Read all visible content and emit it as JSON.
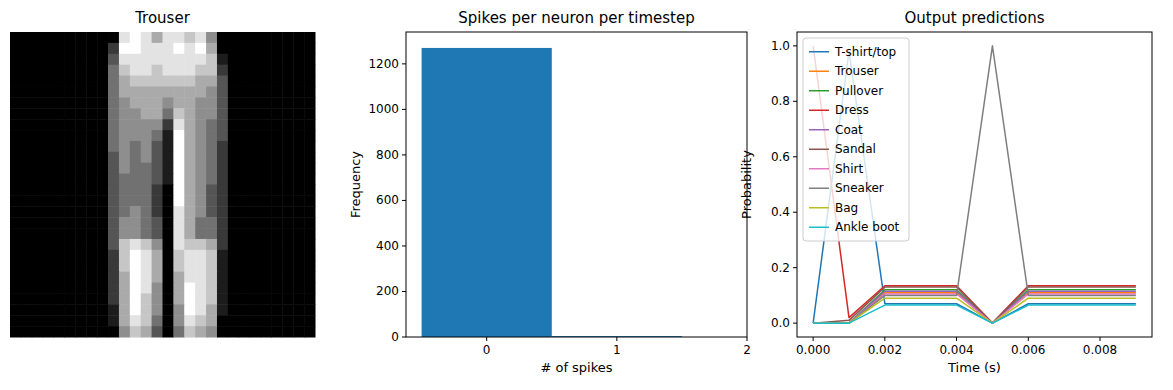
{
  "chart_data": [
    {
      "type": "image",
      "title": "Trouser",
      "tick_labels": false,
      "cells": [
        [
          0,
          0,
          0,
          0,
          0,
          0,
          0,
          0,
          0,
          0,
          0.8,
          0.9,
          0.8,
          0.6,
          0.8,
          0.8,
          0.7,
          0.8,
          0.5,
          0,
          0,
          0,
          0,
          0,
          0,
          0,
          0,
          0
        ],
        [
          0,
          0,
          0,
          0,
          0,
          0,
          0,
          0,
          0,
          0.2,
          0.9,
          0.9,
          0.8,
          0.8,
          0.8,
          0.9,
          0.8,
          0.9,
          0.6,
          0,
          0,
          0,
          0,
          0,
          0,
          0,
          0,
          0
        ],
        [
          0,
          0,
          0,
          0,
          0,
          0,
          0,
          0,
          0,
          0.3,
          0.8,
          0.8,
          0.8,
          0.8,
          0.8,
          0.8,
          0.8,
          0.8,
          0.7,
          0.1,
          0,
          0,
          0,
          0,
          0,
          0,
          0,
          0
        ],
        [
          0,
          0,
          0,
          0,
          0,
          0,
          0,
          0,
          0,
          0.4,
          0.7,
          0.8,
          0.8,
          0.7,
          0.8,
          0.8,
          0.8,
          0.7,
          0.7,
          0.2,
          0,
          0,
          0,
          0,
          0,
          0,
          0,
          0
        ],
        [
          0,
          0,
          0,
          0,
          0,
          0,
          0,
          0,
          0,
          0.4,
          0.6,
          0.7,
          0.7,
          0.7,
          0.7,
          0.7,
          0.7,
          0.6,
          0.6,
          0.3,
          0,
          0,
          0,
          0,
          0,
          0,
          0,
          0
        ],
        [
          0,
          0,
          0,
          0,
          0,
          0,
          0,
          0,
          0,
          0.4,
          0.6,
          0.6,
          0.6,
          0.6,
          0.6,
          0.6,
          0.6,
          0.6,
          0.5,
          0.3,
          0,
          0,
          0,
          0,
          0,
          0,
          0,
          0
        ],
        [
          0,
          0,
          0,
          0,
          0,
          0,
          0,
          0,
          0,
          0.4,
          0.5,
          0.6,
          0.6,
          0.6,
          0.5,
          0.6,
          0.6,
          0.5,
          0.5,
          0.3,
          0,
          0,
          0,
          0,
          0,
          0,
          0,
          0
        ],
        [
          0,
          0,
          0,
          0,
          0,
          0,
          0,
          0,
          0,
          0.4,
          0.5,
          0.5,
          0.6,
          0.6,
          0.4,
          0.7,
          0.6,
          0.5,
          0.5,
          0.3,
          0,
          0,
          0,
          0,
          0,
          0,
          0,
          0
        ],
        [
          0,
          0,
          0,
          0,
          0,
          0,
          0,
          0,
          0,
          0.4,
          0.5,
          0.5,
          0.5,
          0.5,
          0.2,
          0.8,
          0.6,
          0.5,
          0.4,
          0.3,
          0,
          0,
          0,
          0,
          0,
          0,
          0,
          0
        ],
        [
          0,
          0,
          0,
          0,
          0,
          0,
          0,
          0,
          0,
          0.4,
          0.5,
          0.5,
          0.5,
          0.4,
          0.1,
          0.9,
          0.6,
          0.5,
          0.4,
          0.3,
          0,
          0,
          0,
          0,
          0,
          0,
          0,
          0
        ],
        [
          0,
          0,
          0,
          0,
          0,
          0,
          0,
          0,
          0,
          0.4,
          0.5,
          0.4,
          0.5,
          0.3,
          0.1,
          0.9,
          0.6,
          0.5,
          0.4,
          0.2,
          0,
          0,
          0,
          0,
          0,
          0,
          0,
          0
        ],
        [
          0,
          0,
          0,
          0,
          0,
          0,
          0,
          0,
          0,
          0.3,
          0.5,
          0.4,
          0.5,
          0.3,
          0.1,
          0.9,
          0.6,
          0.5,
          0.4,
          0.2,
          0,
          0,
          0,
          0,
          0,
          0,
          0,
          0
        ],
        [
          0,
          0,
          0,
          0,
          0,
          0,
          0,
          0,
          0,
          0.3,
          0.5,
          0.4,
          0.4,
          0.3,
          0.1,
          0.9,
          0.6,
          0.5,
          0.4,
          0.2,
          0,
          0,
          0,
          0,
          0,
          0,
          0,
          0
        ],
        [
          0,
          0,
          0,
          0,
          0,
          0,
          0,
          0,
          0,
          0.3,
          0.4,
          0.4,
          0.4,
          0.3,
          0.1,
          0.9,
          0.6,
          0.5,
          0.4,
          0.2,
          0,
          0,
          0,
          0,
          0,
          0,
          0,
          0
        ],
        [
          0,
          0,
          0,
          0,
          0,
          0,
          0,
          0,
          0,
          0.3,
          0.4,
          0.4,
          0.4,
          0.2,
          0,
          0.9,
          0.6,
          0.5,
          0.3,
          0.2,
          0,
          0,
          0,
          0,
          0,
          0,
          0,
          0
        ],
        [
          0,
          0,
          0,
          0,
          0,
          0,
          0,
          0,
          0,
          0.3,
          0.4,
          0.4,
          0.4,
          0.2,
          0,
          0.9,
          0.6,
          0.5,
          0.3,
          0.2,
          0,
          0,
          0,
          0,
          0,
          0,
          0,
          0
        ],
        [
          0,
          0,
          0,
          0,
          0,
          0,
          0,
          0,
          0,
          0.3,
          0.4,
          0.5,
          0.4,
          0.2,
          0,
          0.8,
          0.6,
          0.5,
          0.3,
          0.2,
          0,
          0,
          0,
          0,
          0,
          0,
          0,
          0
        ],
        [
          0,
          0,
          0,
          0,
          0,
          0,
          0,
          0,
          0,
          0.3,
          0.5,
          0.5,
          0.4,
          0.3,
          0,
          0.8,
          0.6,
          0.4,
          0.4,
          0.2,
          0,
          0,
          0,
          0,
          0,
          0,
          0,
          0
        ],
        [
          0,
          0,
          0,
          0,
          0,
          0,
          0,
          0,
          0,
          0.3,
          0.5,
          0.5,
          0.4,
          0.3,
          0,
          0.8,
          0.6,
          0.4,
          0.4,
          0.2,
          0,
          0,
          0,
          0,
          0,
          0,
          0,
          0
        ],
        [
          0,
          0,
          0,
          0,
          0,
          0,
          0,
          0,
          0,
          0.3,
          0.7,
          0.8,
          0.7,
          0.5,
          0,
          0.8,
          0.7,
          0.7,
          0.6,
          0.2,
          0,
          0,
          0,
          0,
          0,
          0,
          0,
          0
        ],
        [
          0,
          0,
          0,
          0,
          0,
          0,
          0,
          0,
          0,
          0.2,
          0.7,
          0.9,
          0.8,
          0.6,
          0,
          0.7,
          0.8,
          0.8,
          0.7,
          0.1,
          0,
          0,
          0,
          0,
          0,
          0,
          0,
          0
        ],
        [
          0,
          0,
          0,
          0,
          0,
          0,
          0,
          0,
          0,
          0.2,
          0.7,
          0.9,
          0.8,
          0.6,
          0,
          0.7,
          0.8,
          0.8,
          0.7,
          0.1,
          0,
          0,
          0,
          0,
          0,
          0,
          0,
          0
        ],
        [
          0,
          0,
          0,
          0,
          0,
          0,
          0,
          0,
          0,
          0.2,
          0.6,
          0.9,
          0.8,
          0.6,
          0,
          0.6,
          0.8,
          0.8,
          0.7,
          0.1,
          0,
          0,
          0,
          0,
          0,
          0,
          0,
          0
        ],
        [
          0,
          0,
          0,
          0,
          0,
          0,
          0,
          0,
          0,
          0.2,
          0.6,
          0.9,
          0.8,
          0.5,
          0,
          0.6,
          0.9,
          0.8,
          0.7,
          0.1,
          0,
          0,
          0,
          0,
          0,
          0,
          0,
          0
        ],
        [
          0,
          0,
          0,
          0,
          0,
          0,
          0,
          0,
          0,
          0.2,
          0.6,
          0.9,
          0.7,
          0.5,
          0,
          0.6,
          0.9,
          0.8,
          0.7,
          0.1,
          0,
          0,
          0,
          0,
          0,
          0,
          0,
          0
        ],
        [
          0,
          0,
          0,
          0,
          0,
          0,
          0,
          0,
          0,
          0.1,
          0.6,
          0.9,
          0.7,
          0.5,
          0,
          0.5,
          0.9,
          0.8,
          0.6,
          0.1,
          0,
          0,
          0,
          0,
          0,
          0,
          0,
          0
        ],
        [
          0,
          0,
          0,
          0,
          0,
          0,
          0,
          0,
          0,
          0.1,
          0.6,
          0.8,
          0.7,
          0.4,
          0,
          0.5,
          0.8,
          0.7,
          0.6,
          0,
          0,
          0,
          0,
          0,
          0,
          0,
          0,
          0
        ],
        [
          0,
          0,
          0,
          0,
          0,
          0,
          0,
          0,
          0,
          0,
          0.5,
          0.7,
          0.6,
          0.3,
          0,
          0.4,
          0.7,
          0.6,
          0.5,
          0,
          0,
          0,
          0,
          0,
          0,
          0,
          0,
          0
        ]
      ]
    },
    {
      "type": "histogram",
      "title": "Spikes per neuron per timestep",
      "x_label": "# of spikes",
      "y_label": "Frequency",
      "bins": [
        -0.5,
        0.5,
        1.5
      ],
      "counts": [
        1270,
        4
      ],
      "color": "#1f77b4",
      "xlim": [
        -0.62,
        2.0
      ],
      "xticks": [
        0,
        1,
        2
      ],
      "ylim": [
        0,
        1340
      ],
      "yticks": [
        0,
        200,
        400,
        600,
        800,
        1000,
        1200
      ]
    },
    {
      "type": "line",
      "title": "Output predictions",
      "x_label": "Time (s)",
      "y_label": "Probability",
      "legend": "upper left",
      "x": [
        0,
        0.001,
        0.002,
        0.003,
        0.004,
        0.005,
        0.006,
        0.007,
        0.008,
        0.009
      ],
      "xlim": [
        -0.00045,
        0.00945
      ],
      "xticks": [
        {
          "value": 0,
          "label": "0.000"
        },
        {
          "value": 0.002,
          "label": "0.002"
        },
        {
          "value": 0.004,
          "label": "0.004"
        },
        {
          "value": 0.006,
          "label": "0.006"
        },
        {
          "value": 0.008,
          "label": "0.008"
        }
      ],
      "ylim": [
        -0.05,
        1.05
      ],
      "yticks": [
        {
          "value": 0,
          "label": "0.0"
        },
        {
          "value": 0.2,
          "label": "0.2"
        },
        {
          "value": 0.4,
          "label": "0.4"
        },
        {
          "value": 0.6,
          "label": "0.6"
        },
        {
          "value": 0.8,
          "label": "0.8"
        },
        {
          "value": 1,
          "label": "1.0"
        }
      ],
      "series": [
        {
          "name": "T-shirt/top",
          "color": "#1f77b4",
          "values": [
            0,
            0.98,
            0.07,
            0.07,
            0.07,
            0,
            0.07,
            0.07,
            0.07,
            0.07
          ]
        },
        {
          "name": "Trouser",
          "color": "#ff7f0e",
          "values": [
            0,
            0,
            0.11,
            0.11,
            0.11,
            0,
            0.11,
            0.11,
            0.11,
            0.11
          ]
        },
        {
          "name": "Pullover",
          "color": "#2ca02c",
          "values": [
            0,
            0,
            0.12,
            0.12,
            0.12,
            0,
            0.12,
            0.12,
            0.12,
            0.12
          ]
        },
        {
          "name": "Dress",
          "color": "#d62728",
          "values": [
            1.0,
            0.02,
            0.135,
            0.135,
            0.135,
            0,
            0.135,
            0.135,
            0.135,
            0.135
          ]
        },
        {
          "name": "Coat",
          "color": "#9467bd",
          "values": [
            0,
            0,
            0.115,
            0.115,
            0.115,
            0,
            0.115,
            0.115,
            0.115,
            0.115
          ]
        },
        {
          "name": "Sandal",
          "color": "#8c564b",
          "values": [
            0,
            0.01,
            0.13,
            0.13,
            0.13,
            0,
            0.13,
            0.13,
            0.13,
            0.13
          ]
        },
        {
          "name": "Shirt",
          "color": "#e377c2",
          "values": [
            0,
            0,
            0.105,
            0.105,
            0.105,
            0,
            0.105,
            0.105,
            0.105,
            0.105
          ]
        },
        {
          "name": "Sneaker",
          "color": "#7f7f7f",
          "values": [
            0,
            0,
            0.1,
            0.1,
            0.1,
            1.0,
            0.1,
            0.1,
            0.1,
            0.1
          ]
        },
        {
          "name": "Bag",
          "color": "#bcbd22",
          "values": [
            0,
            0,
            0.09,
            0.09,
            0.09,
            0,
            0.09,
            0.09,
            0.09,
            0.09
          ]
        },
        {
          "name": "Ankle boot",
          "color": "#17becf",
          "values": [
            0,
            0,
            0.065,
            0.065,
            0.065,
            0,
            0.065,
            0.065,
            0.065,
            0.065
          ]
        }
      ]
    }
  ]
}
